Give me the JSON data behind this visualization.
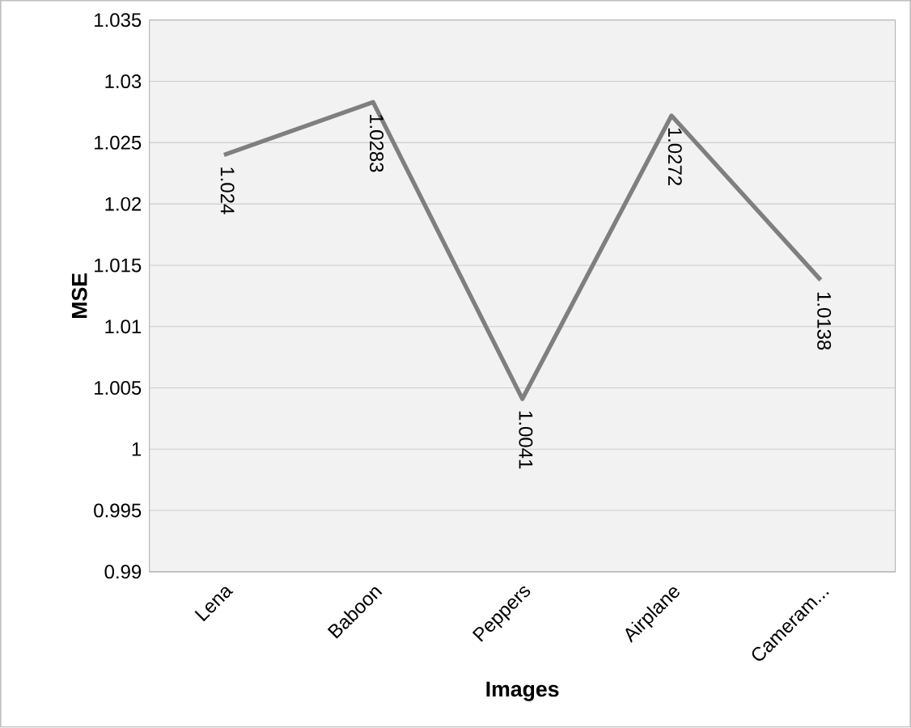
{
  "chart_data": {
    "type": "line",
    "xlabel": "Images",
    "ylabel": "MSE",
    "categories": [
      "Lena",
      "Baboon",
      "Peppers",
      "Airplane",
      "Cameram..."
    ],
    "values": [
      1.024,
      1.0283,
      1.0041,
      1.0272,
      1.0138
    ],
    "color": "#7f7f7f",
    "data_labels": true,
    "grid": "y",
    "marker": "none",
    "line_style": "solid",
    "ylim": [
      0.99,
      1.035
    ],
    "yticks": [
      0.99,
      0.995,
      1,
      1.005,
      1.01,
      1.015,
      1.02,
      1.025,
      1.03,
      1.035
    ]
  }
}
